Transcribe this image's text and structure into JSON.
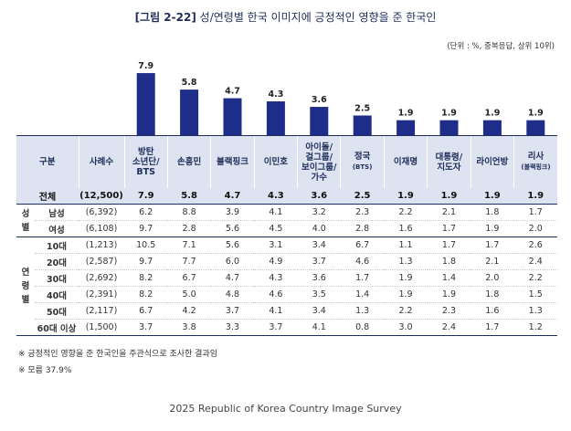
{
  "title": {
    "fig": "[그림 2-22]",
    "text": "성/연령별 한국 이미지에 긍정적인 영향을 준 한국인"
  },
  "unit_note": "(단위 : %, 중복응답, 상위 10위)",
  "chart_data": {
    "type": "bar",
    "categories": [
      "방탄 소년단/BTS",
      "손흥민",
      "블랙핑크",
      "이민호",
      "아이돌/걸그룹/보이그룹/가수",
      "정국(BTS)",
      "이재명",
      "대통령/지도자",
      "라이언방",
      "리사(블랙핑크)"
    ],
    "values": [
      7.9,
      5.8,
      4.7,
      4.3,
      3.6,
      2.5,
      1.9,
      1.9,
      1.9,
      1.9
    ],
    "color": "#1f2d8a"
  },
  "table": {
    "header": {
      "group": "구분",
      "count": "사례수",
      "columns": [
        {
          "lines": [
            "방탄",
            "소년단/",
            "BTS"
          ],
          "sub": ""
        },
        {
          "lines": [
            "손흥민"
          ],
          "sub": ""
        },
        {
          "lines": [
            "블랙핑크"
          ],
          "sub": ""
        },
        {
          "lines": [
            "이민호"
          ],
          "sub": ""
        },
        {
          "lines": [
            "아이돌/",
            "걸그룹/",
            "보이그룹/",
            "가수"
          ],
          "sub": ""
        },
        {
          "lines": [
            "정국"
          ],
          "sub": "(BTS)"
        },
        {
          "lines": [
            "이재명"
          ],
          "sub": ""
        },
        {
          "lines": [
            "대통령/",
            "지도자"
          ],
          "sub": ""
        },
        {
          "lines": [
            "라이언방"
          ],
          "sub": ""
        },
        {
          "lines": [
            "리사"
          ],
          "sub": "(블랙핑크)"
        }
      ]
    },
    "total": {
      "label": "전체",
      "n": "(12,500)",
      "values": [
        "7.9",
        "5.8",
        "4.7",
        "4.3",
        "3.6",
        "2.5",
        "1.9",
        "1.9",
        "1.9",
        "1.9"
      ]
    },
    "groups": [
      {
        "name": "성별",
        "rows": [
          {
            "label": "남성",
            "n": "(6,392)",
            "values": [
              "6.2",
              "8.8",
              "3.9",
              "4.1",
              "3.2",
              "2.3",
              "2.2",
              "2.1",
              "1.8",
              "1.7"
            ]
          },
          {
            "label": "여성",
            "n": "(6,108)",
            "values": [
              "9.7",
              "2.8",
              "5.6",
              "4.5",
              "4.0",
              "2.8",
              "1.6",
              "1.7",
              "1.9",
              "2.0"
            ]
          }
        ]
      },
      {
        "name": "연령별",
        "rows": [
          {
            "label": "10대",
            "n": "(1,213)",
            "values": [
              "10.5",
              "7.1",
              "5.6",
              "3.1",
              "3.4",
              "6.7",
              "1.1",
              "1.7",
              "1.7",
              "2.6"
            ]
          },
          {
            "label": "20대",
            "n": "(2,587)",
            "values": [
              "9.7",
              "7.7",
              "6.0",
              "4.9",
              "3.7",
              "4.6",
              "1.3",
              "1.8",
              "2.1",
              "2.4"
            ]
          },
          {
            "label": "30대",
            "n": "(2,692)",
            "values": [
              "8.2",
              "6.7",
              "4.7",
              "4.3",
              "3.6",
              "1.7",
              "1.9",
              "1.4",
              "2.0",
              "2.2"
            ]
          },
          {
            "label": "40대",
            "n": "(2,391)",
            "values": [
              "8.2",
              "5.0",
              "4.8",
              "4.6",
              "3.5",
              "1.4",
              "1.9",
              "1.9",
              "1.8",
              "1.5"
            ]
          },
          {
            "label": "50대",
            "n": "(2,117)",
            "values": [
              "6.7",
              "4.2",
              "3.7",
              "4.1",
              "3.4",
              "1.3",
              "2.2",
              "2.3",
              "1.6",
              "1.3"
            ]
          },
          {
            "label": "60대 이상",
            "n": "(1,500)",
            "values": [
              "3.7",
              "3.8",
              "3.3",
              "3.7",
              "4.1",
              "0.8",
              "3.0",
              "2.4",
              "1.7",
              "1.2"
            ]
          }
        ]
      }
    ]
  },
  "notes": [
    "※ 긍정적인 영향을 준 한국인을 주관식으로 조사한 결과임",
    "※ 모름 37.9%"
  ],
  "footer": "2025 Republic of Korea Country Image Survey"
}
